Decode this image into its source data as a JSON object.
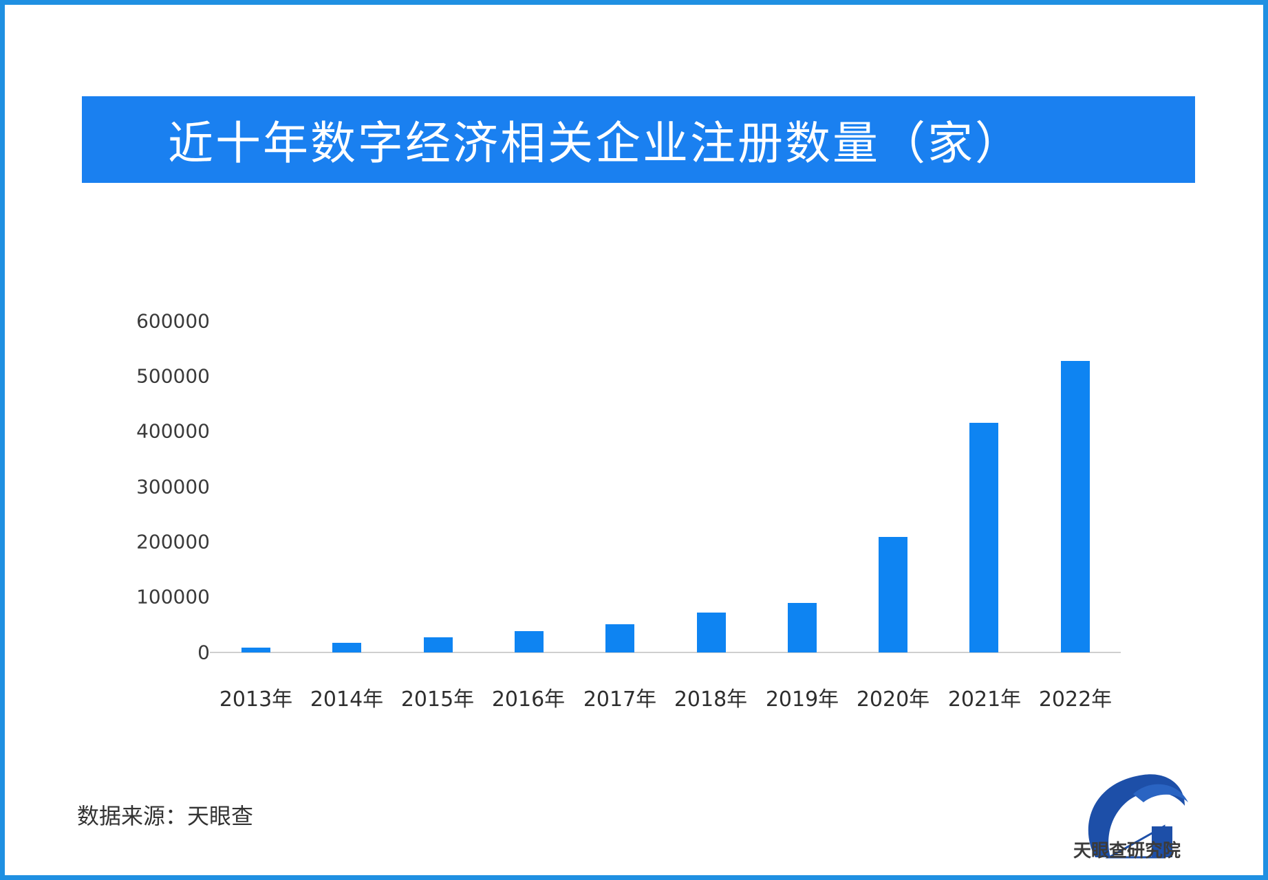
{
  "title": "近十年数字经济相关企业注册数量（家）",
  "source_label": "数据来源：天眼查",
  "logo_text": "天眼查研究院",
  "colors": {
    "frame": "#1f90e2",
    "title_bar": "#1a80f0",
    "bar": "#0e84f2",
    "logo_arc": "#1d4fa8"
  },
  "y_axis": {
    "ticks": [
      "600000",
      "500000",
      "400000",
      "300000",
      "200000",
      "100000",
      "0"
    ]
  },
  "x_axis": {
    "labels": [
      "2013年",
      "2014年",
      "2015年",
      "2016年",
      "2017年",
      "2018年",
      "2019年",
      "2020年",
      "2021年",
      "2022年"
    ]
  },
  "chart_data": {
    "type": "bar",
    "title": "近十年数字经济相关企业注册数量（家）",
    "xlabel": "",
    "ylabel": "",
    "categories": [
      "2013年",
      "2014年",
      "2015年",
      "2016年",
      "2017年",
      "2018年",
      "2019年",
      "2020年",
      "2021年",
      "2022年"
    ],
    "values": [
      9000,
      17000,
      27000,
      39000,
      51000,
      72000,
      90000,
      209000,
      416000,
      528000
    ],
    "ylim": [
      0,
      600000
    ],
    "yticks": [
      0,
      100000,
      200000,
      300000,
      400000,
      500000,
      600000
    ],
    "grid": false,
    "legend": null,
    "source": "数据来源：天眼查"
  }
}
